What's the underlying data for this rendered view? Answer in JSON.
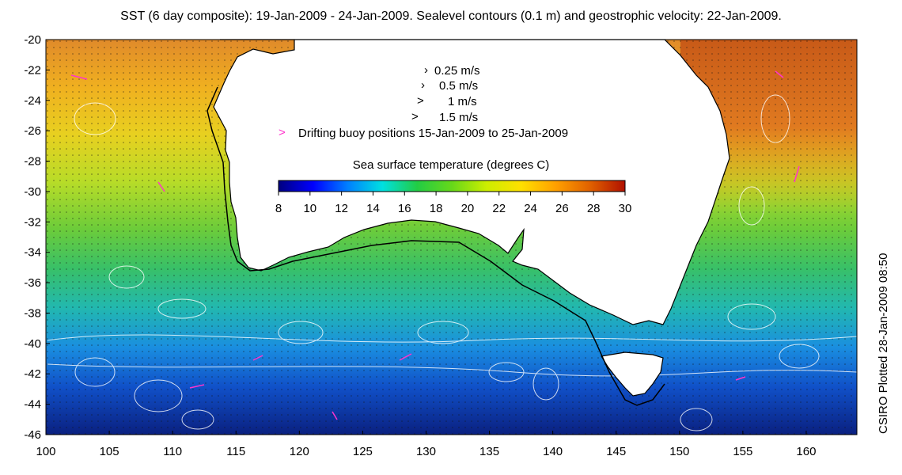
{
  "title": "SST (6 day composite): 19-Jan-2009 - 24-Jan-2009. Sealevel contours (0.1 m) and geostrophic velocity: 22-Jan-2009.",
  "credit": "CSIRO Plotted 28-Jan-2009 08:50",
  "map": {
    "lon_range": [
      100,
      164
    ],
    "lat_range": [
      -46,
      -20
    ],
    "lon_ticks": [
      "100",
      "105",
      "110",
      "115",
      "120",
      "125",
      "130",
      "135",
      "140",
      "145",
      "150",
      "155",
      "160"
    ],
    "lat_ticks": [
      "-20",
      "-22",
      "-24",
      "-26",
      "-28",
      "-30",
      "-32",
      "-34",
      "-36",
      "-38",
      "-40",
      "-42",
      "-44",
      "-46"
    ],
    "region": "Australia (west, south and east coasts), Tasmania"
  },
  "velocity_legend": [
    {
      "label": "0.25 m/s"
    },
    {
      "label": "0.5 m/s"
    },
    {
      "label": "1 m/s"
    },
    {
      "label": "1.5 m/s"
    }
  ],
  "buoy_legend": {
    "symbol": ">",
    "label": "Drifting buoy positions 15-Jan-2009 to 25-Jan-2009",
    "color": "#ff33cc"
  },
  "colorbar": {
    "title": "Sea surface temperature (degrees C)",
    "min": 8,
    "max": 30,
    "ticks": [
      "8",
      "10",
      "12",
      "14",
      "16",
      "18",
      "20",
      "22",
      "24",
      "26",
      "28",
      "30"
    ],
    "colors": [
      "#00007f",
      "#0000ff",
      "#0080ff",
      "#00e0e0",
      "#22cc44",
      "#66d81a",
      "#ccee00",
      "#ffe000",
      "#ffa000",
      "#e06000",
      "#b01000"
    ]
  },
  "colors": {
    "land": "#ffffff",
    "contour": "#ffffff",
    "coastline": "#000000"
  }
}
